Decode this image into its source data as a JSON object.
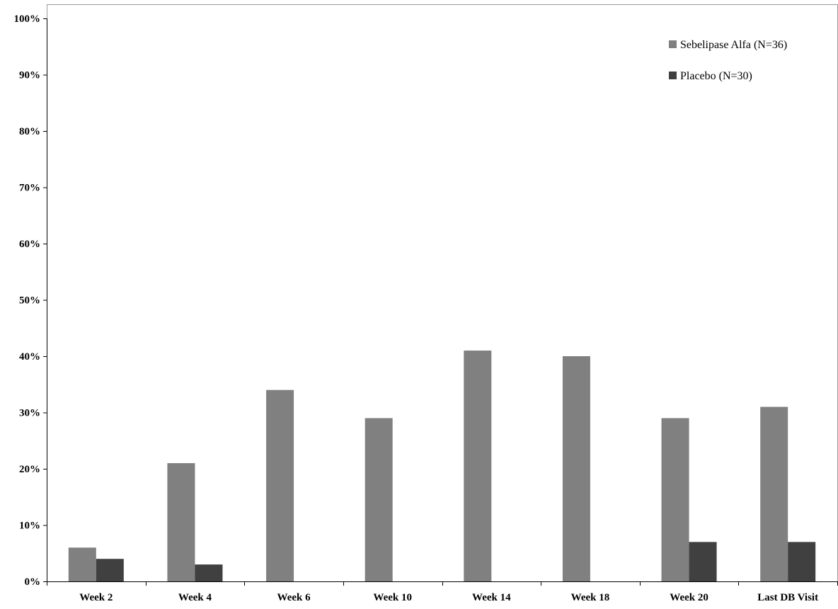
{
  "chart_data": {
    "type": "bar",
    "categories": [
      "Week 2",
      "Week 4",
      "Week 6",
      "Week 10",
      "Week 14",
      "Week 18",
      "Week 20",
      "Last DB Visit"
    ],
    "series": [
      {
        "name": "Sebelipase Alfa (N=36)",
        "color": "#808080",
        "values": [
          6,
          21,
          34,
          29,
          41,
          40,
          29,
          31
        ]
      },
      {
        "name": "Placebo (N=30)",
        "color": "#404040",
        "values": [
          4,
          3,
          0,
          0,
          0,
          0,
          7,
          7
        ]
      }
    ],
    "ylim": [
      0,
      100
    ],
    "yticks": [
      0,
      10,
      20,
      30,
      40,
      50,
      60,
      70,
      80,
      90,
      100
    ],
    "ytick_format": "percent",
    "grid": false,
    "legend_placement": "top-right",
    "title": "",
    "xlabel": "",
    "ylabel": ""
  }
}
